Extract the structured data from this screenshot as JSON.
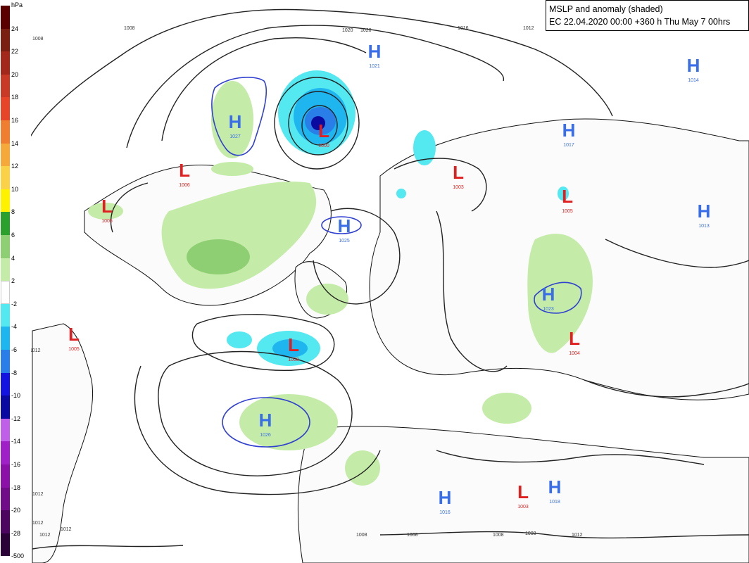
{
  "title": {
    "line1": "MSLP and anomaly (shaded)",
    "line2": "EC 22.04.2020 00:00 +360 h Thu May 7 00hrs"
  },
  "colorbar": {
    "unit": "hPa",
    "entries": [
      {
        "label": "24",
        "color": "#5a0000"
      },
      {
        "label": "22",
        "color": "#7a1e12"
      },
      {
        "label": "20",
        "color": "#a3281c"
      },
      {
        "label": "18",
        "color": "#c83a26"
      },
      {
        "label": "16",
        "color": "#e6452a"
      },
      {
        "label": "14",
        "color": "#f07e30"
      },
      {
        "label": "12",
        "color": "#f5a93a"
      },
      {
        "label": "10",
        "color": "#f9d24a"
      },
      {
        "label": "8",
        "color": "#fff200"
      },
      {
        "label": "6",
        "color": "#2ca02c"
      },
      {
        "label": "4",
        "color": "#8fcf73"
      },
      {
        "label": "2",
        "color": "#c4eca8"
      },
      {
        "label": "-2",
        "color": "#ffffff"
      },
      {
        "label": "-4",
        "color": "#54e8f0"
      },
      {
        "label": "-6",
        "color": "#1fb6f0"
      },
      {
        "label": "-8",
        "color": "#2a7ee8"
      },
      {
        "label": "-10",
        "color": "#1414e0"
      },
      {
        "label": "-12",
        "color": "#0a0aa0"
      },
      {
        "label": "-14",
        "color": "#c060e8"
      },
      {
        "label": "-16",
        "color": "#a020c8"
      },
      {
        "label": "-18",
        "color": "#8a10a8"
      },
      {
        "label": "-20",
        "color": "#700c88"
      },
      {
        "label": "-28",
        "color": "#4c0660"
      },
      {
        "label": "-500",
        "color": "#2a0238"
      }
    ]
  },
  "pressure_centers": [
    {
      "type": "H",
      "value": "1021",
      "color": "#3a6ee8"
    },
    {
      "type": "H",
      "value": "1027",
      "color": "#3a6ee8"
    },
    {
      "type": "L",
      "value": "1000",
      "color": "#e02020"
    },
    {
      "type": "L",
      "value": "1006",
      "color": "#e02020"
    },
    {
      "type": "L",
      "value": "1005",
      "color": "#e02020"
    },
    {
      "type": "H",
      "value": "1025",
      "color": "#3a6ee8"
    },
    {
      "type": "L",
      "value": "1005",
      "color": "#e02020"
    },
    {
      "type": "L",
      "value": "1008",
      "color": "#e02020"
    },
    {
      "type": "H",
      "value": "1026",
      "color": "#3a6ee8"
    },
    {
      "type": "L",
      "value": "1003",
      "color": "#e02020"
    },
    {
      "type": "H",
      "value": "1017",
      "color": "#3a6ee8"
    },
    {
      "type": "L",
      "value": "1005",
      "color": "#e02020"
    },
    {
      "type": "H",
      "value": "1014",
      "color": "#3a6ee8"
    },
    {
      "type": "H",
      "value": "1013",
      "color": "#3a6ee8"
    },
    {
      "type": "H",
      "value": "1023",
      "color": "#3a6ee8"
    },
    {
      "type": "L",
      "value": "1004",
      "color": "#e02020"
    },
    {
      "type": "H",
      "value": "1016",
      "color": "#3a6ee8"
    },
    {
      "type": "L",
      "value": "1003",
      "color": "#e02020"
    },
    {
      "type": "H",
      "value": "1018",
      "color": "#3a6ee8"
    }
  ],
  "contour_labels": [
    "1008",
    "1008",
    "1008",
    "1020",
    "1020",
    "1016",
    "1012",
    "1012",
    "1012",
    "1012",
    "1012",
    "1012",
    "1008",
    "1008",
    "1008",
    "1008",
    "1012"
  ]
}
